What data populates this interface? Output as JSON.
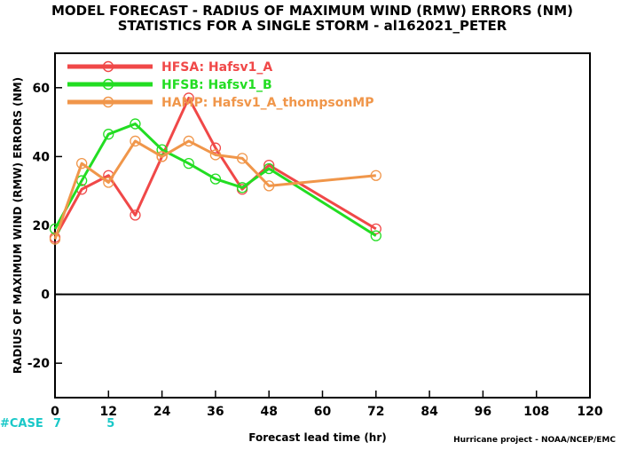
{
  "chart_data": {
    "type": "line",
    "title": "MODEL FORECAST - RADIUS OF MAXIMUM WIND (RMW) ERRORS (NM)",
    "subtitle": "STATISTICS FOR A SINGLE STORM - al162021_PETER",
    "xlabel": "Forecast lead time (hr)",
    "ylabel": "RADIUS OF MAXIMUM WIND (RMW) ERRORS (NM)",
    "xlim": [
      0,
      120
    ],
    "ylim": [
      -30,
      70
    ],
    "xticks": [
      0,
      12,
      24,
      36,
      48,
      60,
      72,
      84,
      96,
      108,
      120
    ],
    "yticks": [
      -20,
      0,
      20,
      40,
      60
    ],
    "grid": false,
    "legend_position": "top-left",
    "series": [
      {
        "name": "HFSA: Hafsv1_A",
        "color": "#f04848",
        "x": [
          0,
          6,
          12,
          18,
          24,
          30,
          36,
          42,
          48,
          72
        ],
        "y": [
          16.5,
          30.5,
          34.5,
          23,
          40,
          57,
          42.5,
          30.5,
          37.5,
          19
        ]
      },
      {
        "name": "HFSB: Hafsv1_B",
        "color": "#22dd22",
        "x": [
          0,
          6,
          12,
          18,
          24,
          30,
          36,
          42,
          48,
          72
        ],
        "y": [
          19,
          33,
          46.5,
          49.5,
          42,
          38,
          33.5,
          31,
          36.5,
          17
        ]
      },
      {
        "name": "HAMP: Hafsv1_A_thompsonMP",
        "color": "#f0964a",
        "x": [
          0,
          6,
          12,
          18,
          24,
          30,
          36,
          42,
          48,
          72
        ],
        "y": [
          16,
          38,
          32.5,
          44.5,
          40,
          44.5,
          40.5,
          39.5,
          31.5,
          34.5
        ]
      }
    ],
    "case_label": "#CASE",
    "case_counts": [
      {
        "x": 0,
        "n": "7"
      },
      {
        "x": 12,
        "n": "5"
      }
    ]
  },
  "footer": {
    "credit": "Hurricane project - NOAA/NCEP/EMC"
  }
}
